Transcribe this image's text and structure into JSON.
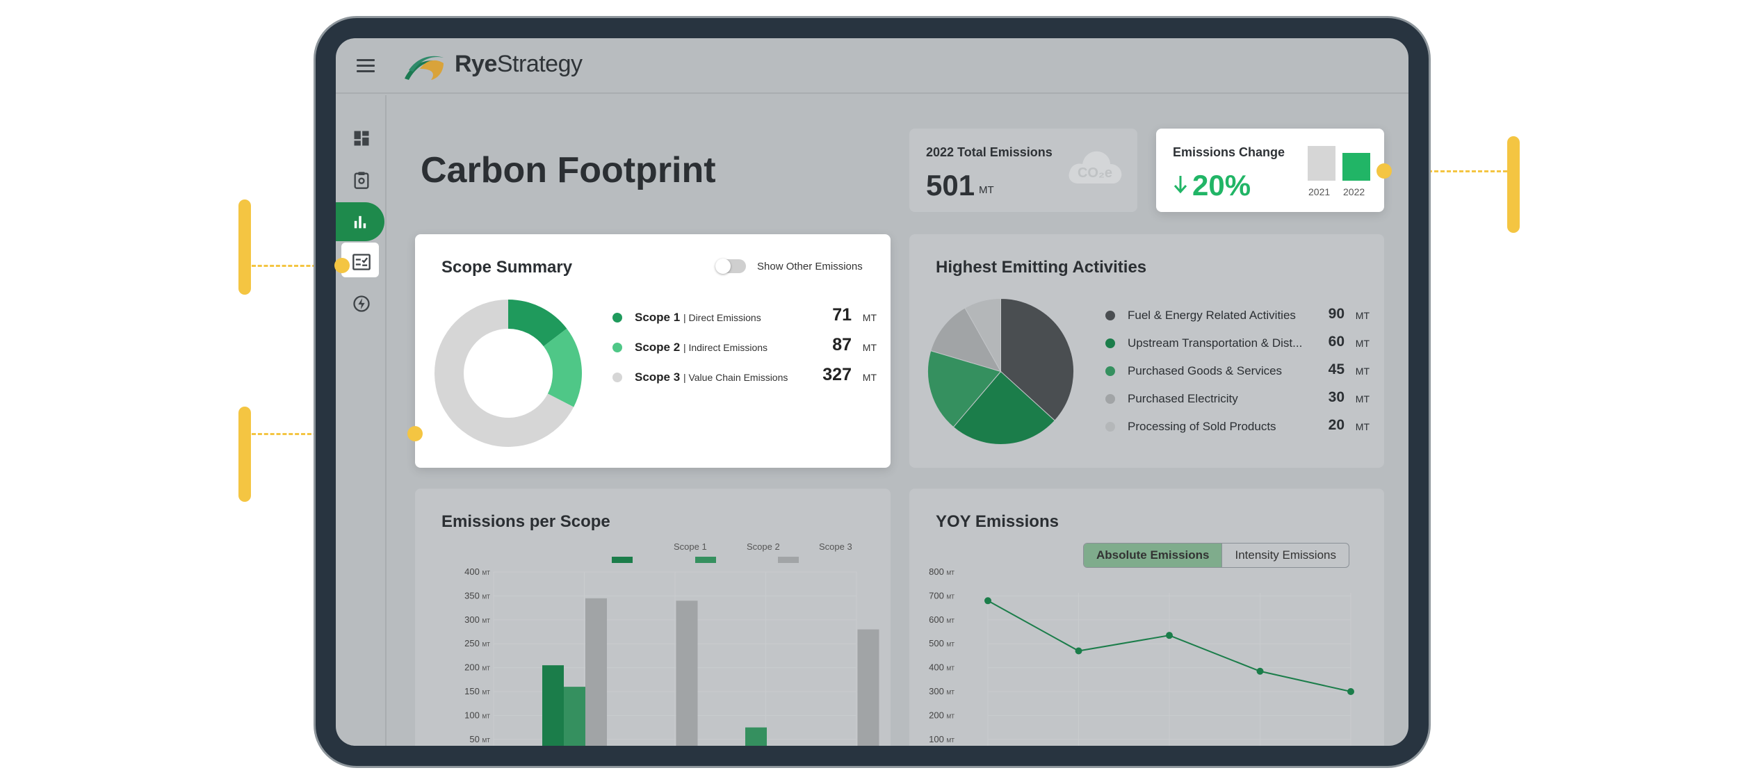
{
  "app": {
    "brand_strong": "Rye",
    "brand_light": "Strategy"
  },
  "sidebar": {
    "items": [
      {
        "icon": "dashboard-icon"
      },
      {
        "icon": "clipboard-icon"
      },
      {
        "icon": "bar-chart-icon",
        "active": true
      },
      {
        "icon": "report-checklist-icon"
      },
      {
        "icon": "energy-icon"
      }
    ]
  },
  "page": {
    "title": "Carbon Footprint"
  },
  "total_emissions": {
    "label": "2022 Total Emissions",
    "value": "501",
    "unit": "MT",
    "icon_text": "CO₂e"
  },
  "emissions_change": {
    "label": "Emissions Change",
    "value": "20%",
    "direction": "down",
    "bars": [
      {
        "year": "2021",
        "level": 1.0
      },
      {
        "year": "2022",
        "level": 0.8
      }
    ]
  },
  "scope_summary": {
    "title": "Scope Summary",
    "toggle_label": "Show Other Emissions",
    "toggle_on": false,
    "rows": [
      {
        "name": "Scope 1",
        "sub": "| Direct Emissions",
        "value": "71",
        "unit": "MT",
        "color": "#1f9a5c"
      },
      {
        "name": "Scope 2",
        "sub": "| Indirect Emissions",
        "value": "87",
        "unit": "MT",
        "color": "#4fc787"
      },
      {
        "name": "Scope 3",
        "sub": "| Value Chain Emissions",
        "value": "327",
        "unit": "MT",
        "color": "#d6d6d6"
      }
    ]
  },
  "highest_emitting": {
    "title": "Highest Emitting Activities",
    "rows": [
      {
        "name": "Fuel & Energy Related Activities",
        "value": "90",
        "unit": "MT",
        "color": "#4a4e51"
      },
      {
        "name": "Upstream Transportation & Dist...",
        "value": "60",
        "unit": "MT",
        "color": "#1b7d4a"
      },
      {
        "name": "Purchased Goods & Services",
        "value": "45",
        "unit": "MT",
        "color": "#35905f"
      },
      {
        "name": "Purchased Electricity",
        "value": "30",
        "unit": "MT",
        "color": "#a1a4a6"
      },
      {
        "name": "Processing of Sold Products",
        "value": "20",
        "unit": "MT",
        "color": "#b4b7b9"
      }
    ]
  },
  "emissions_per_scope": {
    "title": "Emissions per Scope",
    "legend": [
      "Scope 1",
      "Scope 2",
      "Scope 3"
    ]
  },
  "yoy": {
    "title": "YOY Emissions",
    "tabs": [
      "Absolute Emissions",
      "Intensity Emissions"
    ],
    "active_tab": 0
  },
  "chart_data": [
    {
      "type": "pie",
      "title": "Scope Summary",
      "categories": [
        "Scope 1",
        "Scope 2",
        "Scope 3"
      ],
      "values": [
        71,
        87,
        327
      ],
      "colors": [
        "#1f9a5c",
        "#4fc787",
        "#d6d6d6"
      ]
    },
    {
      "type": "pie",
      "title": "Highest Emitting Activities",
      "categories": [
        "Fuel & Energy Related Activities",
        "Upstream Transportation & Dist...",
        "Purchased Goods & Services",
        "Purchased Electricity",
        "Processing of Sold Products"
      ],
      "values": [
        90,
        60,
        45,
        30,
        20
      ],
      "colors": [
        "#4a4e51",
        "#1b7d4a",
        "#35905f",
        "#a1a4a6",
        "#b4b7b9"
      ]
    },
    {
      "type": "bar",
      "title": "Emissions per Scope",
      "ylim": [
        0,
        400
      ],
      "yticks": [
        400,
        350,
        300,
        250,
        200,
        150,
        100,
        50
      ],
      "y_unit": "MT",
      "groups": 4,
      "series": [
        {
          "name": "Scope 1",
          "color": "#1b7d4a",
          "values": [
            205,
            null,
            null,
            null
          ]
        },
        {
          "name": "Scope 2",
          "color": "#35905f",
          "values": [
            160,
            null,
            75,
            null
          ]
        },
        {
          "name": "Scope 3",
          "color": "#a1a4a6",
          "values": [
            345,
            340,
            null,
            280
          ]
        }
      ]
    },
    {
      "type": "line",
      "title": "YOY Emissions",
      "ylim": [
        0,
        800
      ],
      "yticks": [
        800,
        700,
        600,
        500,
        400,
        300,
        200,
        100
      ],
      "y_unit": "MT",
      "series": [
        {
          "color": "#1b7d4a",
          "values": [
            680,
            470,
            535,
            385,
            300
          ]
        }
      ]
    }
  ]
}
